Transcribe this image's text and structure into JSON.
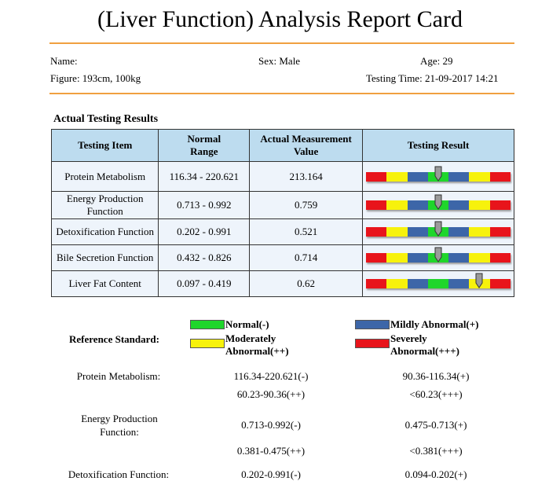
{
  "title": "(Liver Function) Analysis Report Card",
  "info": {
    "name_label": "Name:",
    "sex": "Sex: Male",
    "age": "Age: 29",
    "figure": "Figure: 193cm, 100kg",
    "testing_time": "Testing Time: 21-09-2017 14:21"
  },
  "section_title": "Actual Testing Results",
  "table": {
    "headers": [
      "Testing Item",
      "Normal Range",
      "Actual Measurement Value",
      "Testing Result"
    ],
    "rows": [
      {
        "item": "Protein Metabolism",
        "range": "116.34 - 220.621",
        "value": "213.164",
        "pointer": 0.5
      },
      {
        "item": "Energy Production Function",
        "range": "0.713 - 0.992",
        "value": "0.759",
        "pointer": 0.5
      },
      {
        "item": "Detoxification Function",
        "range": "0.202 - 0.991",
        "value": "0.521",
        "pointer": 0.5
      },
      {
        "item": "Bile Secretion Function",
        "range": "0.432 - 0.826",
        "value": "0.714",
        "pointer": 0.5
      },
      {
        "item": "Liver Fat Content",
        "range": "0.097 - 0.419",
        "value": "0.62",
        "pointer": 0.78
      }
    ]
  },
  "colors": {
    "red": "#e8141b",
    "yellow": "#f7f20c",
    "blue": "#3d66a8",
    "green": "#1fd62b",
    "rule": "#f0a040"
  },
  "reference": {
    "label": "Reference Standard:",
    "legend": {
      "normal": "Normal(-)",
      "mild": "Mildly Abnormal(+)",
      "moderate": "Moderately Abnormal(++)",
      "severe": "Severely Abnormal(+++)"
    },
    "items": [
      {
        "name": "Protein Metabolism:",
        "normal": "116.34-220.621(-)",
        "mild": "90.36-116.34(+)",
        "moderate": "60.23-90.36(++)",
        "severe": "<60.23(+++)"
      },
      {
        "name": "Energy Production Function:",
        "normal": "0.713-0.992(-)",
        "mild": "0.475-0.713(+)",
        "moderate": "0.381-0.475(++)",
        "severe": "<0.381(+++)"
      },
      {
        "name": "Detoxification Function:",
        "normal": "0.202-0.991(-)",
        "mild": "0.094-0.202(+)"
      }
    ]
  }
}
